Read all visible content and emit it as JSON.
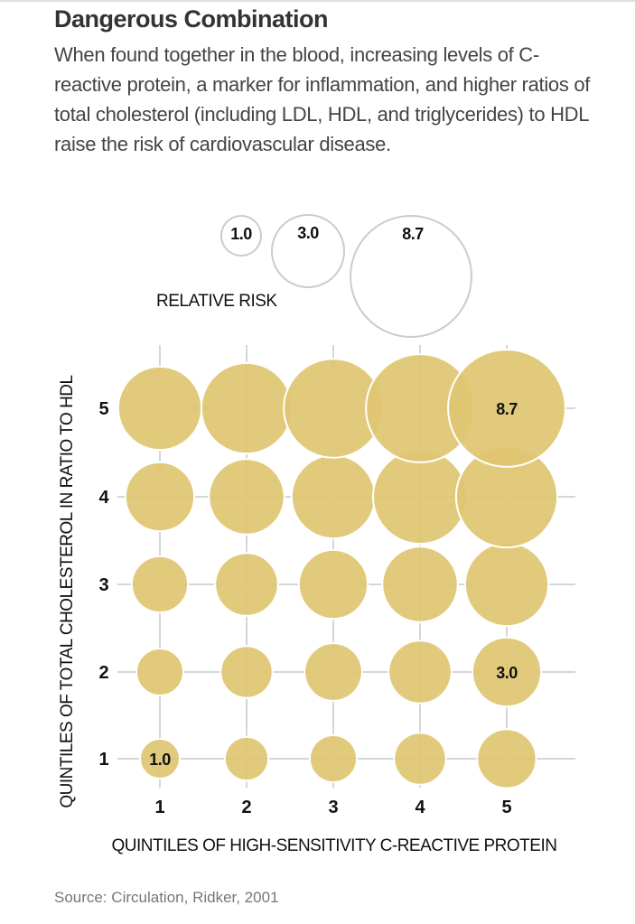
{
  "header": {
    "title": "Dangerous Combination",
    "subtitle": "When found together in the blood, increasing levels of C-reactive protein, a marker for inflammation, and higher ratios of total cholesterol (including LDL, HDL, and triglycerides) to HDL raise the risk of cardiovascular disease."
  },
  "footer": {
    "source": "Source: Circulation, Ridker, 2001"
  },
  "colors": {
    "bubble": "#e0c572",
    "bubble_stroke": "#ffffff",
    "grid": "#d6d6d6",
    "legend_stroke": "#cccccc"
  },
  "chart_data": {
    "type": "bubble",
    "title": "Dangerous Combination",
    "xlabel": "QUINTILES OF HIGH-SENSITIVITY C-REACTIVE PROTEIN",
    "ylabel": "QUINTILES OF TOTAL CHOLESTEROL IN RATIO TO HDL",
    "x_ticks": [
      "1",
      "2",
      "3",
      "4",
      "5"
    ],
    "y_ticks": [
      "1",
      "2",
      "3",
      "4",
      "5"
    ],
    "size_legend_title": "RELATIVE RISK",
    "size_legend": [
      {
        "value": 1.0,
        "label": "1.0"
      },
      {
        "value": 3.0,
        "label": "3.0"
      },
      {
        "value": 8.7,
        "label": "8.7"
      }
    ],
    "grid": true,
    "points": [
      {
        "x": 1,
        "y": 1,
        "risk": 1.0,
        "label": "1.0"
      },
      {
        "x": 2,
        "y": 1,
        "risk": 1.2
      },
      {
        "x": 3,
        "y": 1,
        "risk": 1.4
      },
      {
        "x": 4,
        "y": 1,
        "risk": 1.7
      },
      {
        "x": 5,
        "y": 1,
        "risk": 2.2
      },
      {
        "x": 1,
        "y": 2,
        "risk": 1.4
      },
      {
        "x": 2,
        "y": 2,
        "risk": 1.7
      },
      {
        "x": 3,
        "y": 2,
        "risk": 2.1
      },
      {
        "x": 4,
        "y": 2,
        "risk": 2.5
      },
      {
        "x": 5,
        "y": 2,
        "risk": 3.0,
        "label": "3.0"
      },
      {
        "x": 1,
        "y": 3,
        "risk": 2.0
      },
      {
        "x": 2,
        "y": 3,
        "risk": 2.5
      },
      {
        "x": 3,
        "y": 3,
        "risk": 3.0
      },
      {
        "x": 4,
        "y": 3,
        "risk": 3.6
      },
      {
        "x": 5,
        "y": 3,
        "risk": 4.4
      },
      {
        "x": 1,
        "y": 4,
        "risk": 3.0
      },
      {
        "x": 2,
        "y": 4,
        "risk": 3.6
      },
      {
        "x": 3,
        "y": 4,
        "risk": 4.4
      },
      {
        "x": 4,
        "y": 4,
        "risk": 5.6
      },
      {
        "x": 5,
        "y": 4,
        "risk": 6.5
      },
      {
        "x": 1,
        "y": 5,
        "risk": 4.4
      },
      {
        "x": 2,
        "y": 5,
        "risk": 5.2
      },
      {
        "x": 3,
        "y": 5,
        "risk": 6.2
      },
      {
        "x": 4,
        "y": 5,
        "risk": 7.4
      },
      {
        "x": 5,
        "y": 5,
        "risk": 8.7,
        "label": "8.7"
      }
    ]
  }
}
